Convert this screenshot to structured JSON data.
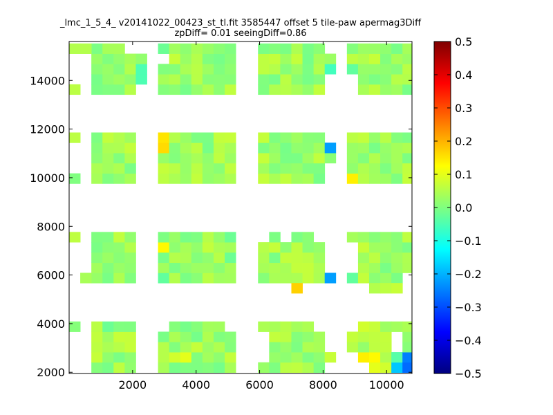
{
  "chart_data": {
    "type": "heatmap",
    "title_lines": [
      "_lmc_1_5_4_ v20141022_00423_st_tl.fit 3585447 offset 5 tile-paw apermag3Diff",
      "zpDiff= 0.01 seeingDiff=0.86"
    ],
    "xlabel": "",
    "ylabel": "",
    "xlim": [
      0,
      10800
    ],
    "ylim": [
      1950,
      15600
    ],
    "x_ticks": [
      2000,
      4000,
      6000,
      8000,
      10000
    ],
    "y_ticks": [
      2000,
      4000,
      6000,
      8000,
      10000,
      12000,
      14000
    ],
    "colorbar": {
      "colormap": "jet",
      "vmin": -0.5,
      "vmax": 0.5,
      "ticks": [
        "0.5",
        "0.4",
        "0.3",
        "0.2",
        "0.1",
        "0.0",
        "−0.1",
        "−0.2",
        "−0.3",
        "−0.4",
        "−0.5"
      ]
    },
    "cell_width": 350,
    "cell_height": 420,
    "column_x_starts": [
      [
        0,
        700,
        1050,
        1400,
        1750,
        2100
      ],
      [
        2800,
        3150,
        3500,
        3850,
        4200,
        4550,
        4900
      ],
      [
        5950,
        6300,
        6650,
        7000,
        7350,
        7700,
        8050
      ],
      [
        8750,
        9100,
        9450,
        9800,
        10150,
        10500
      ]
    ],
    "row_y_starts": [
      [
        1990,
        2410,
        2830,
        3250,
        3670
      ],
      [
        5670,
        6090,
        6510,
        6930,
        7350
      ],
      [
        9760,
        10180,
        10600,
        11020,
        11440
      ],
      [
        13420,
        13840,
        14260,
        14680,
        15100
      ]
    ],
    "base_value": 0.03,
    "cells": [
      {
        "x": 0,
        "y": 15100,
        "v": 0.05
      },
      {
        "x": 350,
        "y": 15100,
        "v": 0.05
      },
      {
        "x": 1400,
        "y": 15100,
        "v": 0.04
      },
      {
        "x": 2100,
        "y": 14260,
        "v": -0.05
      },
      {
        "x": 2100,
        "y": 13840,
        "v": -0.05
      },
      {
        "x": 1050,
        "y": 13420,
        "v": 0.0
      },
      {
        "x": 1400,
        "y": 13420,
        "v": 0.0
      },
      {
        "x": 2800,
        "y": 15100,
        "v": -0.02
      },
      {
        "x": 8050,
        "y": 14260,
        "v": -0.06
      },
      {
        "x": 8750,
        "y": 14260,
        "v": -0.03
      },
      {
        "x": 2800,
        "y": 11440,
        "v": 0.15
      },
      {
        "x": 2800,
        "y": 11020,
        "v": 0.16
      },
      {
        "x": 8050,
        "y": 11020,
        "v": -0.22
      },
      {
        "x": 8750,
        "y": 9760,
        "v": 0.14
      },
      {
        "x": 0,
        "y": 9760,
        "v": 0.0
      },
      {
        "x": 1050,
        "y": 9760,
        "v": 0.0
      },
      {
        "x": 2800,
        "y": 6930,
        "v": 0.13
      },
      {
        "x": 2800,
        "y": 5670,
        "v": -0.03
      },
      {
        "x": 4900,
        "y": 7350,
        "v": -0.02
      },
      {
        "x": 4900,
        "y": 6510,
        "v": -0.02
      },
      {
        "x": 1050,
        "y": 7350,
        "v": 0.0
      },
      {
        "x": 8050,
        "y": 5670,
        "v": -0.22
      },
      {
        "x": 8750,
        "y": 5670,
        "v": -0.03
      },
      {
        "x": 7000,
        "y": 5250,
        "v": 0.17
      },
      {
        "x": 9450,
        "y": 5250,
        "v": 0.05
      },
      {
        "x": 9800,
        "y": 5250,
        "v": 0.06
      },
      {
        "x": 10150,
        "y": 5250,
        "v": 0.07
      },
      {
        "x": 350,
        "y": 5670,
        "v": 0.04
      },
      {
        "x": 1050,
        "y": 3670,
        "v": -0.02
      },
      {
        "x": 1400,
        "y": 3670,
        "v": 0.0
      },
      {
        "x": 3850,
        "y": 3250,
        "v": -0.01
      },
      {
        "x": 3500,
        "y": 2410,
        "v": 0.1
      },
      {
        "x": 3150,
        "y": 2410,
        "v": 0.08
      },
      {
        "x": 4550,
        "y": 1990,
        "v": -0.01
      },
      {
        "x": 4900,
        "y": 1990,
        "v": 0.04
      },
      {
        "x": 8050,
        "y": 2410,
        "v": 0.07
      },
      {
        "x": 9100,
        "y": 2410,
        "v": 0.14
      },
      {
        "x": 9450,
        "y": 2410,
        "v": 0.13
      },
      {
        "x": 9450,
        "y": 1990,
        "v": 0.1
      },
      {
        "x": 9800,
        "y": 1990,
        "v": 0.08
      },
      {
        "x": 10150,
        "y": 2410,
        "v": -0.04
      },
      {
        "x": 10150,
        "y": 1990,
        "v": -0.18
      },
      {
        "x": 10500,
        "y": 2410,
        "v": -0.25
      },
      {
        "x": 10500,
        "y": 1990,
        "v": -0.27
      },
      {
        "x": 9100,
        "y": 3670,
        "v": 0.08
      },
      {
        "x": 9450,
        "y": 3670,
        "v": 0.07
      }
    ],
    "missing_cells": [
      {
        "x": 0,
        "y": 14680
      },
      {
        "x": 0,
        "y": 14260
      },
      {
        "x": 0,
        "y": 13840
      },
      {
        "x": 1750,
        "y": 15100
      },
      {
        "x": 2800,
        "y": 14680
      },
      {
        "x": 2100,
        "y": 15100
      },
      {
        "x": 2100,
        "y": 13420
      },
      {
        "x": 8050,
        "y": 15100
      },
      {
        "x": 8050,
        "y": 13840
      },
      {
        "x": 8050,
        "y": 13420
      },
      {
        "x": 8750,
        "y": 13840
      },
      {
        "x": 8750,
        "y": 13420
      },
      {
        "x": 0,
        "y": 11020
      },
      {
        "x": 0,
        "y": 10600
      },
      {
        "x": 0,
        "y": 10180
      },
      {
        "x": 8050,
        "y": 11440
      },
      {
        "x": 8050,
        "y": 10180
      },
      {
        "x": 8050,
        "y": 9760
      },
      {
        "x": 2100,
        "y": 11440
      },
      {
        "x": 2100,
        "y": 11020
      },
      {
        "x": 2100,
        "y": 10600
      },
      {
        "x": 2100,
        "y": 10180
      },
      {
        "x": 2100,
        "y": 9760
      },
      {
        "x": 0,
        "y": 6930
      },
      {
        "x": 0,
        "y": 6510
      },
      {
        "x": 0,
        "y": 6090
      },
      {
        "x": 0,
        "y": 5670
      },
      {
        "x": 2100,
        "y": 7350
      },
      {
        "x": 2100,
        "y": 6930
      },
      {
        "x": 2100,
        "y": 6510
      },
      {
        "x": 2100,
        "y": 6090
      },
      {
        "x": 2100,
        "y": 5670
      },
      {
        "x": 5950,
        "y": 7350
      },
      {
        "x": 6650,
        "y": 7350
      },
      {
        "x": 7700,
        "y": 7350
      },
      {
        "x": 8050,
        "y": 7350
      },
      {
        "x": 8050,
        "y": 6930
      },
      {
        "x": 8050,
        "y": 6510
      },
      {
        "x": 8050,
        "y": 6090
      },
      {
        "x": 8750,
        "y": 6930
      },
      {
        "x": 8750,
        "y": 6510
      },
      {
        "x": 8750,
        "y": 6090
      },
      {
        "x": 10500,
        "y": 5670
      },
      {
        "x": 0,
        "y": 3250
      },
      {
        "x": 0,
        "y": 2830
      },
      {
        "x": 0,
        "y": 2410
      },
      {
        "x": 0,
        "y": 1990
      },
      {
        "x": 2100,
        "y": 3670
      },
      {
        "x": 2100,
        "y": 3250
      },
      {
        "x": 2100,
        "y": 2830
      },
      {
        "x": 2100,
        "y": 2410
      },
      {
        "x": 2100,
        "y": 1990
      },
      {
        "x": 2800,
        "y": 3670
      },
      {
        "x": 4900,
        "y": 3670
      },
      {
        "x": 5950,
        "y": 3250
      },
      {
        "x": 5950,
        "y": 2830
      },
      {
        "x": 5950,
        "y": 2410
      },
      {
        "x": 7700,
        "y": 3670
      },
      {
        "x": 8050,
        "y": 3670
      },
      {
        "x": 8050,
        "y": 3250
      },
      {
        "x": 8050,
        "y": 2830
      },
      {
        "x": 8050,
        "y": 1990
      },
      {
        "x": 8750,
        "y": 3670
      },
      {
        "x": 8750,
        "y": 2410
      },
      {
        "x": 8750,
        "y": 1990
      },
      {
        "x": 10150,
        "y": 3250
      },
      {
        "x": 10150,
        "y": 2830
      },
      {
        "x": 9100,
        "y": 1990
      }
    ],
    "grid": false
  }
}
